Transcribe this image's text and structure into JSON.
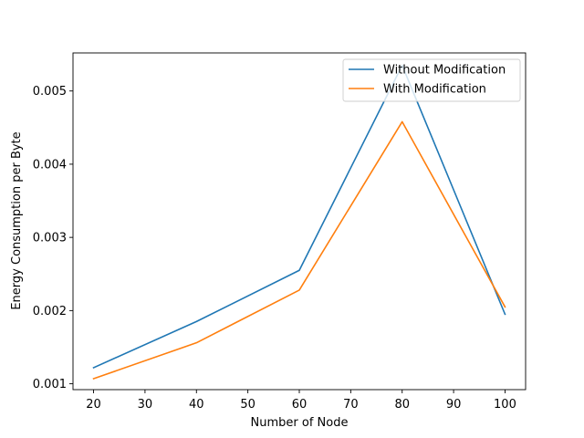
{
  "chart_data": {
    "type": "line",
    "title": "",
    "xlabel": "Number of Node",
    "ylabel": "Energy Consumption per Byte",
    "x": [
      20,
      40,
      60,
      80,
      100
    ],
    "series": [
      {
        "name": "Without Modification",
        "color": "#1f77b4",
        "values": [
          0.00122,
          0.00185,
          0.00255,
          0.00535,
          0.00195
        ]
      },
      {
        "name": "With Modification",
        "color": "#ff7f0e",
        "values": [
          0.00107,
          0.00156,
          0.00228,
          0.00458,
          0.00205
        ]
      }
    ],
    "xlim": [
      16,
      104
    ],
    "ylim": [
      0.00092,
      0.00552
    ],
    "xticks": [
      20,
      30,
      40,
      50,
      60,
      70,
      80,
      90,
      100
    ],
    "xtick_labels": [
      "20",
      "30",
      "40",
      "50",
      "60",
      "70",
      "80",
      "90",
      "100"
    ],
    "yticks": [
      0.001,
      0.002,
      0.003,
      0.004,
      0.005
    ],
    "ytick_labels": [
      "0.001",
      "0.002",
      "0.003",
      "0.004",
      "0.005"
    ],
    "grid": false,
    "legend_position": "top-right"
  }
}
